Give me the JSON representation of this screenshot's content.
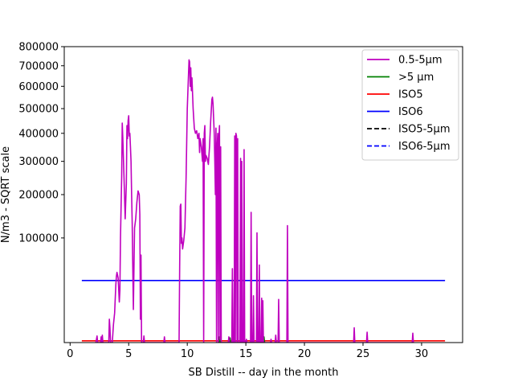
{
  "chart_data": {
    "type": "line",
    "title": "",
    "xlabel": "SB Distill -- day in the month",
    "ylabel": "N/m3 - SQRT scale",
    "y_scale": "sqrt",
    "xlim": [
      -0.5,
      33.5
    ],
    "ylim": [
      0,
      800000
    ],
    "x_ticks": [
      0,
      5,
      10,
      15,
      20,
      25,
      30
    ],
    "y_ticks": [
      100000,
      200000,
      300000,
      400000,
      500000,
      600000,
      700000,
      800000
    ],
    "legend_position": "top-right",
    "series": [
      {
        "name": "0.5-5µm",
        "color": "#bf00bf",
        "style": "solid",
        "points": [
          [
            2.2,
            0
          ],
          [
            2.3,
            400
          ],
          [
            2.35,
            0
          ],
          [
            2.6,
            0
          ],
          [
            2.65,
            300
          ],
          [
            2.7,
            0
          ],
          [
            2.75,
            500
          ],
          [
            2.8,
            0
          ],
          [
            3.3,
            0
          ],
          [
            3.35,
            5000
          ],
          [
            3.4,
            2000
          ],
          [
            3.45,
            0
          ],
          [
            3.6,
            0
          ],
          [
            3.7,
            3000
          ],
          [
            3.8,
            8000
          ],
          [
            3.9,
            30000
          ],
          [
            3.95,
            40000
          ],
          [
            4.0,
            45000
          ],
          [
            4.1,
            38000
          ],
          [
            4.2,
            15000
          ],
          [
            4.25,
            25000
          ],
          [
            4.3,
            100000
          ],
          [
            4.4,
            250000
          ],
          [
            4.45,
            440000
          ],
          [
            4.5,
            380000
          ],
          [
            4.6,
            250000
          ],
          [
            4.7,
            140000
          ],
          [
            4.8,
            230000
          ],
          [
            4.85,
            430000
          ],
          [
            4.9,
            380000
          ],
          [
            4.95,
            450000
          ],
          [
            5.0,
            470000
          ],
          [
            5.05,
            390000
          ],
          [
            5.1,
            400000
          ],
          [
            5.15,
            350000
          ],
          [
            5.2,
            300000
          ],
          [
            5.25,
            200000
          ],
          [
            5.3,
            130000
          ],
          [
            5.35,
            50000
          ],
          [
            5.4,
            10000
          ],
          [
            5.45,
            50000
          ],
          [
            5.5,
            120000
          ],
          [
            5.6,
            140000
          ],
          [
            5.7,
            180000
          ],
          [
            5.8,
            210000
          ],
          [
            5.9,
            200000
          ],
          [
            5.95,
            150000
          ],
          [
            6.0,
            5000
          ],
          [
            6.05,
            70000
          ],
          [
            6.1,
            0
          ],
          [
            6.25,
            0
          ],
          [
            6.3,
            400
          ],
          [
            6.35,
            0
          ],
          [
            8.0,
            0
          ],
          [
            8.05,
            300
          ],
          [
            8.1,
            0
          ],
          [
            9.3,
            0
          ],
          [
            9.35,
            50000
          ],
          [
            9.4,
            170000
          ],
          [
            9.45,
            175000
          ],
          [
            9.5,
            90000
          ],
          [
            9.55,
            100000
          ],
          [
            9.6,
            80000
          ],
          [
            9.7,
            95000
          ],
          [
            9.8,
            120000
          ],
          [
            9.9,
            250000
          ],
          [
            10.0,
            500000
          ],
          [
            10.1,
            650000
          ],
          [
            10.15,
            730000
          ],
          [
            10.2,
            720000
          ],
          [
            10.25,
            600000
          ],
          [
            10.3,
            690000
          ],
          [
            10.35,
            580000
          ],
          [
            10.4,
            640000
          ],
          [
            10.5,
            500000
          ],
          [
            10.6,
            420000
          ],
          [
            10.7,
            400000
          ],
          [
            10.8,
            410000
          ],
          [
            10.9,
            380000
          ],
          [
            11.0,
            400000
          ],
          [
            11.05,
            330000
          ],
          [
            11.1,
            380000
          ],
          [
            11.2,
            350000
          ],
          [
            11.3,
            300000
          ],
          [
            11.35,
            380000
          ],
          [
            11.4,
            0
          ],
          [
            11.45,
            400000
          ],
          [
            11.5,
            430000
          ],
          [
            11.55,
            300000
          ],
          [
            11.6,
            320000
          ],
          [
            11.7,
            310000
          ],
          [
            11.8,
            290000
          ],
          [
            11.9,
            350000
          ],
          [
            12.0,
            450000
          ],
          [
            12.1,
            540000
          ],
          [
            12.15,
            550000
          ],
          [
            12.2,
            520000
          ],
          [
            12.3,
            400000
          ],
          [
            12.35,
            300000
          ],
          [
            12.4,
            200000
          ],
          [
            12.45,
            420000
          ],
          [
            12.5,
            0
          ],
          [
            12.55,
            350000
          ],
          [
            12.6,
            400000
          ],
          [
            12.65,
            0
          ],
          [
            12.7,
            380000
          ],
          [
            12.75,
            430000
          ],
          [
            12.8,
            100
          ],
          [
            12.85,
            350000
          ],
          [
            12.9,
            0
          ],
          [
            13.5,
            0
          ],
          [
            13.55,
            300
          ],
          [
            13.6,
            0
          ],
          [
            13.8,
            0
          ],
          [
            13.85,
            50000
          ],
          [
            13.9,
            0
          ],
          [
            14.0,
            0
          ],
          [
            14.05,
            390000
          ],
          [
            14.1,
            0
          ],
          [
            14.15,
            400000
          ],
          [
            14.2,
            390000
          ],
          [
            14.25,
            0
          ],
          [
            14.3,
            380000
          ],
          [
            14.35,
            0
          ],
          [
            14.5,
            0
          ],
          [
            14.55,
            310000
          ],
          [
            14.6,
            0
          ],
          [
            14.65,
            300000
          ],
          [
            14.7,
            0
          ],
          [
            14.8,
            0
          ],
          [
            14.85,
            340000
          ],
          [
            14.9,
            0
          ],
          [
            14.95,
            0
          ],
          [
            15.0,
            0
          ],
          [
            15.05,
            100
          ],
          [
            15.1,
            0
          ],
          [
            15.4,
            0
          ],
          [
            15.45,
            155000
          ],
          [
            15.5,
            0
          ],
          [
            15.6,
            0
          ],
          [
            15.65,
            20000
          ],
          [
            15.7,
            0
          ],
          [
            15.9,
            0
          ],
          [
            15.95,
            110000
          ],
          [
            16.0,
            0
          ],
          [
            16.1,
            0
          ],
          [
            16.15,
            55000
          ],
          [
            16.2,
            0
          ],
          [
            16.3,
            0
          ],
          [
            16.35,
            18000
          ],
          [
            16.4,
            0
          ],
          [
            16.45,
            16000
          ],
          [
            16.5,
            0
          ],
          [
            17.0,
            0
          ],
          [
            17.1,
            0
          ],
          [
            17.15,
            100
          ],
          [
            17.2,
            0
          ],
          [
            17.5,
            0
          ],
          [
            17.55,
            500
          ],
          [
            17.6,
            0
          ],
          [
            17.75,
            0
          ],
          [
            17.8,
            17000
          ],
          [
            17.85,
            0
          ],
          [
            18.5,
            0
          ],
          [
            18.55,
            125000
          ],
          [
            18.6,
            0
          ],
          [
            24.2,
            0
          ],
          [
            24.25,
            2000
          ],
          [
            24.3,
            0
          ],
          [
            25.3,
            0
          ],
          [
            25.35,
            1000
          ],
          [
            25.4,
            0
          ],
          [
            29.2,
            0
          ],
          [
            29.25,
            800
          ],
          [
            29.3,
            0
          ]
        ]
      },
      {
        "name": ">5 µm",
        "color": "#008000",
        "style": "solid",
        "points": [
          [
            12.7,
            0
          ],
          [
            12.75,
            300
          ],
          [
            12.8,
            0
          ],
          [
            13.6,
            0
          ],
          [
            13.65,
            200
          ],
          [
            13.7,
            0
          ],
          [
            16.2,
            0
          ],
          [
            16.25,
            250
          ],
          [
            16.3,
            0
          ],
          [
            16.5,
            0
          ],
          [
            16.55,
            300
          ],
          [
            16.6,
            0
          ]
        ]
      },
      {
        "name": "ISO5",
        "color": "#ff0000",
        "style": "solid",
        "points": [
          [
            1,
            29
          ],
          [
            32,
            29
          ]
        ]
      },
      {
        "name": "ISO6",
        "color": "#0000ff",
        "style": "solid",
        "points": [
          [
            1,
            35200
          ],
          [
            32,
            35200
          ]
        ]
      },
      {
        "name": "ISO5-5µm",
        "color": "#000000",
        "style": "dashed",
        "points": []
      },
      {
        "name": "ISO6-5µm",
        "color": "#0000ff",
        "style": "dashed",
        "points": []
      }
    ]
  }
}
